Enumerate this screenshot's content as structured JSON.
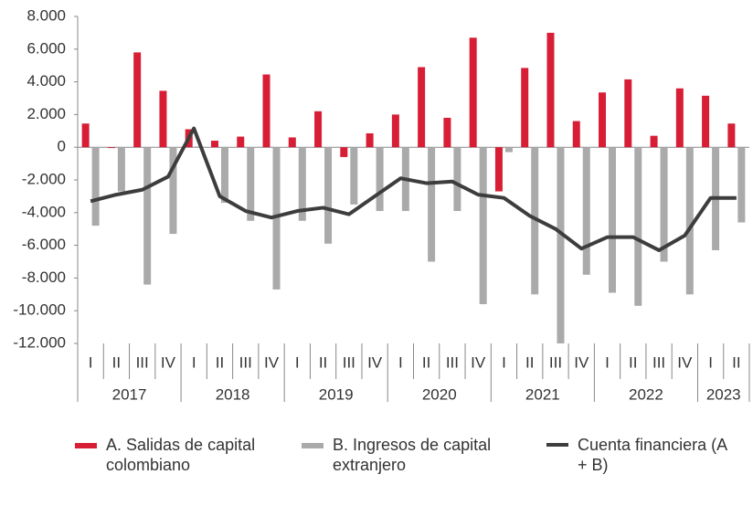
{
  "chart_data": {
    "type": "bar_line",
    "category_groups": [
      {
        "label": "2017",
        "categories": [
          "I",
          "II",
          "III",
          "IV"
        ]
      },
      {
        "label": "2018",
        "categories": [
          "I",
          "II",
          "III",
          "IV"
        ]
      },
      {
        "label": "2019",
        "categories": [
          "I",
          "II",
          "III",
          "IV"
        ]
      },
      {
        "label": "2020",
        "categories": [
          "I",
          "II",
          "III",
          "IV"
        ]
      },
      {
        "label": "2021",
        "categories": [
          "I",
          "II",
          "III",
          "IV"
        ]
      },
      {
        "label": "2022",
        "categories": [
          "I",
          "II",
          "III",
          "IV"
        ]
      },
      {
        "label": "2023",
        "categories": [
          "I",
          "II"
        ]
      }
    ],
    "series": [
      {
        "name": "A. Salidas de capital colombiano",
        "type": "bar",
        "color": "#d71e35",
        "values": [
          1450,
          -50,
          5800,
          3450,
          1100,
          400,
          650,
          4450,
          600,
          2200,
          -600,
          850,
          2000,
          4900,
          1800,
          6700,
          -2700,
          4850,
          7000,
          1600,
          3350,
          4150,
          700,
          3600,
          3150,
          1450
        ]
      },
      {
        "name": "B. Ingresos de capital extranjero",
        "type": "bar",
        "color": "#aaaaaa",
        "values": [
          -4800,
          -2700,
          -8400,
          -5300,
          50,
          -3400,
          -4500,
          -8700,
          -4500,
          -5900,
          -3500,
          -3900,
          -3900,
          -7000,
          -3900,
          -9600,
          -300,
          -9000,
          -12000,
          -7800,
          -8900,
          -9700,
          -7000,
          -9000,
          -6300,
          -4600
        ]
      },
      {
        "name": "Cuenta financiera (A + B)",
        "type": "line",
        "color": "#3d3d3d",
        "values": [
          -3300,
          -2900,
          -2600,
          -1800,
          1150,
          -3000,
          -3900,
          -4300,
          -3900,
          -3700,
          -4100,
          -3000,
          -1900,
          -2200,
          -2100,
          -2900,
          -3100,
          -4200,
          -5000,
          -6200,
          -5500,
          -5500,
          -6300,
          -5400,
          -3100,
          -3100
        ]
      }
    ],
    "ylim": [
      -12000,
      8000
    ],
    "yticks": [
      {
        "value": -12000,
        "label": "-12.000"
      },
      {
        "value": -10000,
        "label": "-10.000"
      },
      {
        "value": -8000,
        "label": "-8.000"
      },
      {
        "value": -6000,
        "label": "-6.000"
      },
      {
        "value": -4000,
        "label": "-4.000"
      },
      {
        "value": -2000,
        "label": "-2.000"
      },
      0,
      {
        "value": 2000,
        "label": "2.000"
      },
      {
        "value": 4000,
        "label": "4.000"
      },
      {
        "value": 6000,
        "label": "6.000"
      },
      {
        "value": 8000,
        "label": "8.000"
      }
    ]
  }
}
